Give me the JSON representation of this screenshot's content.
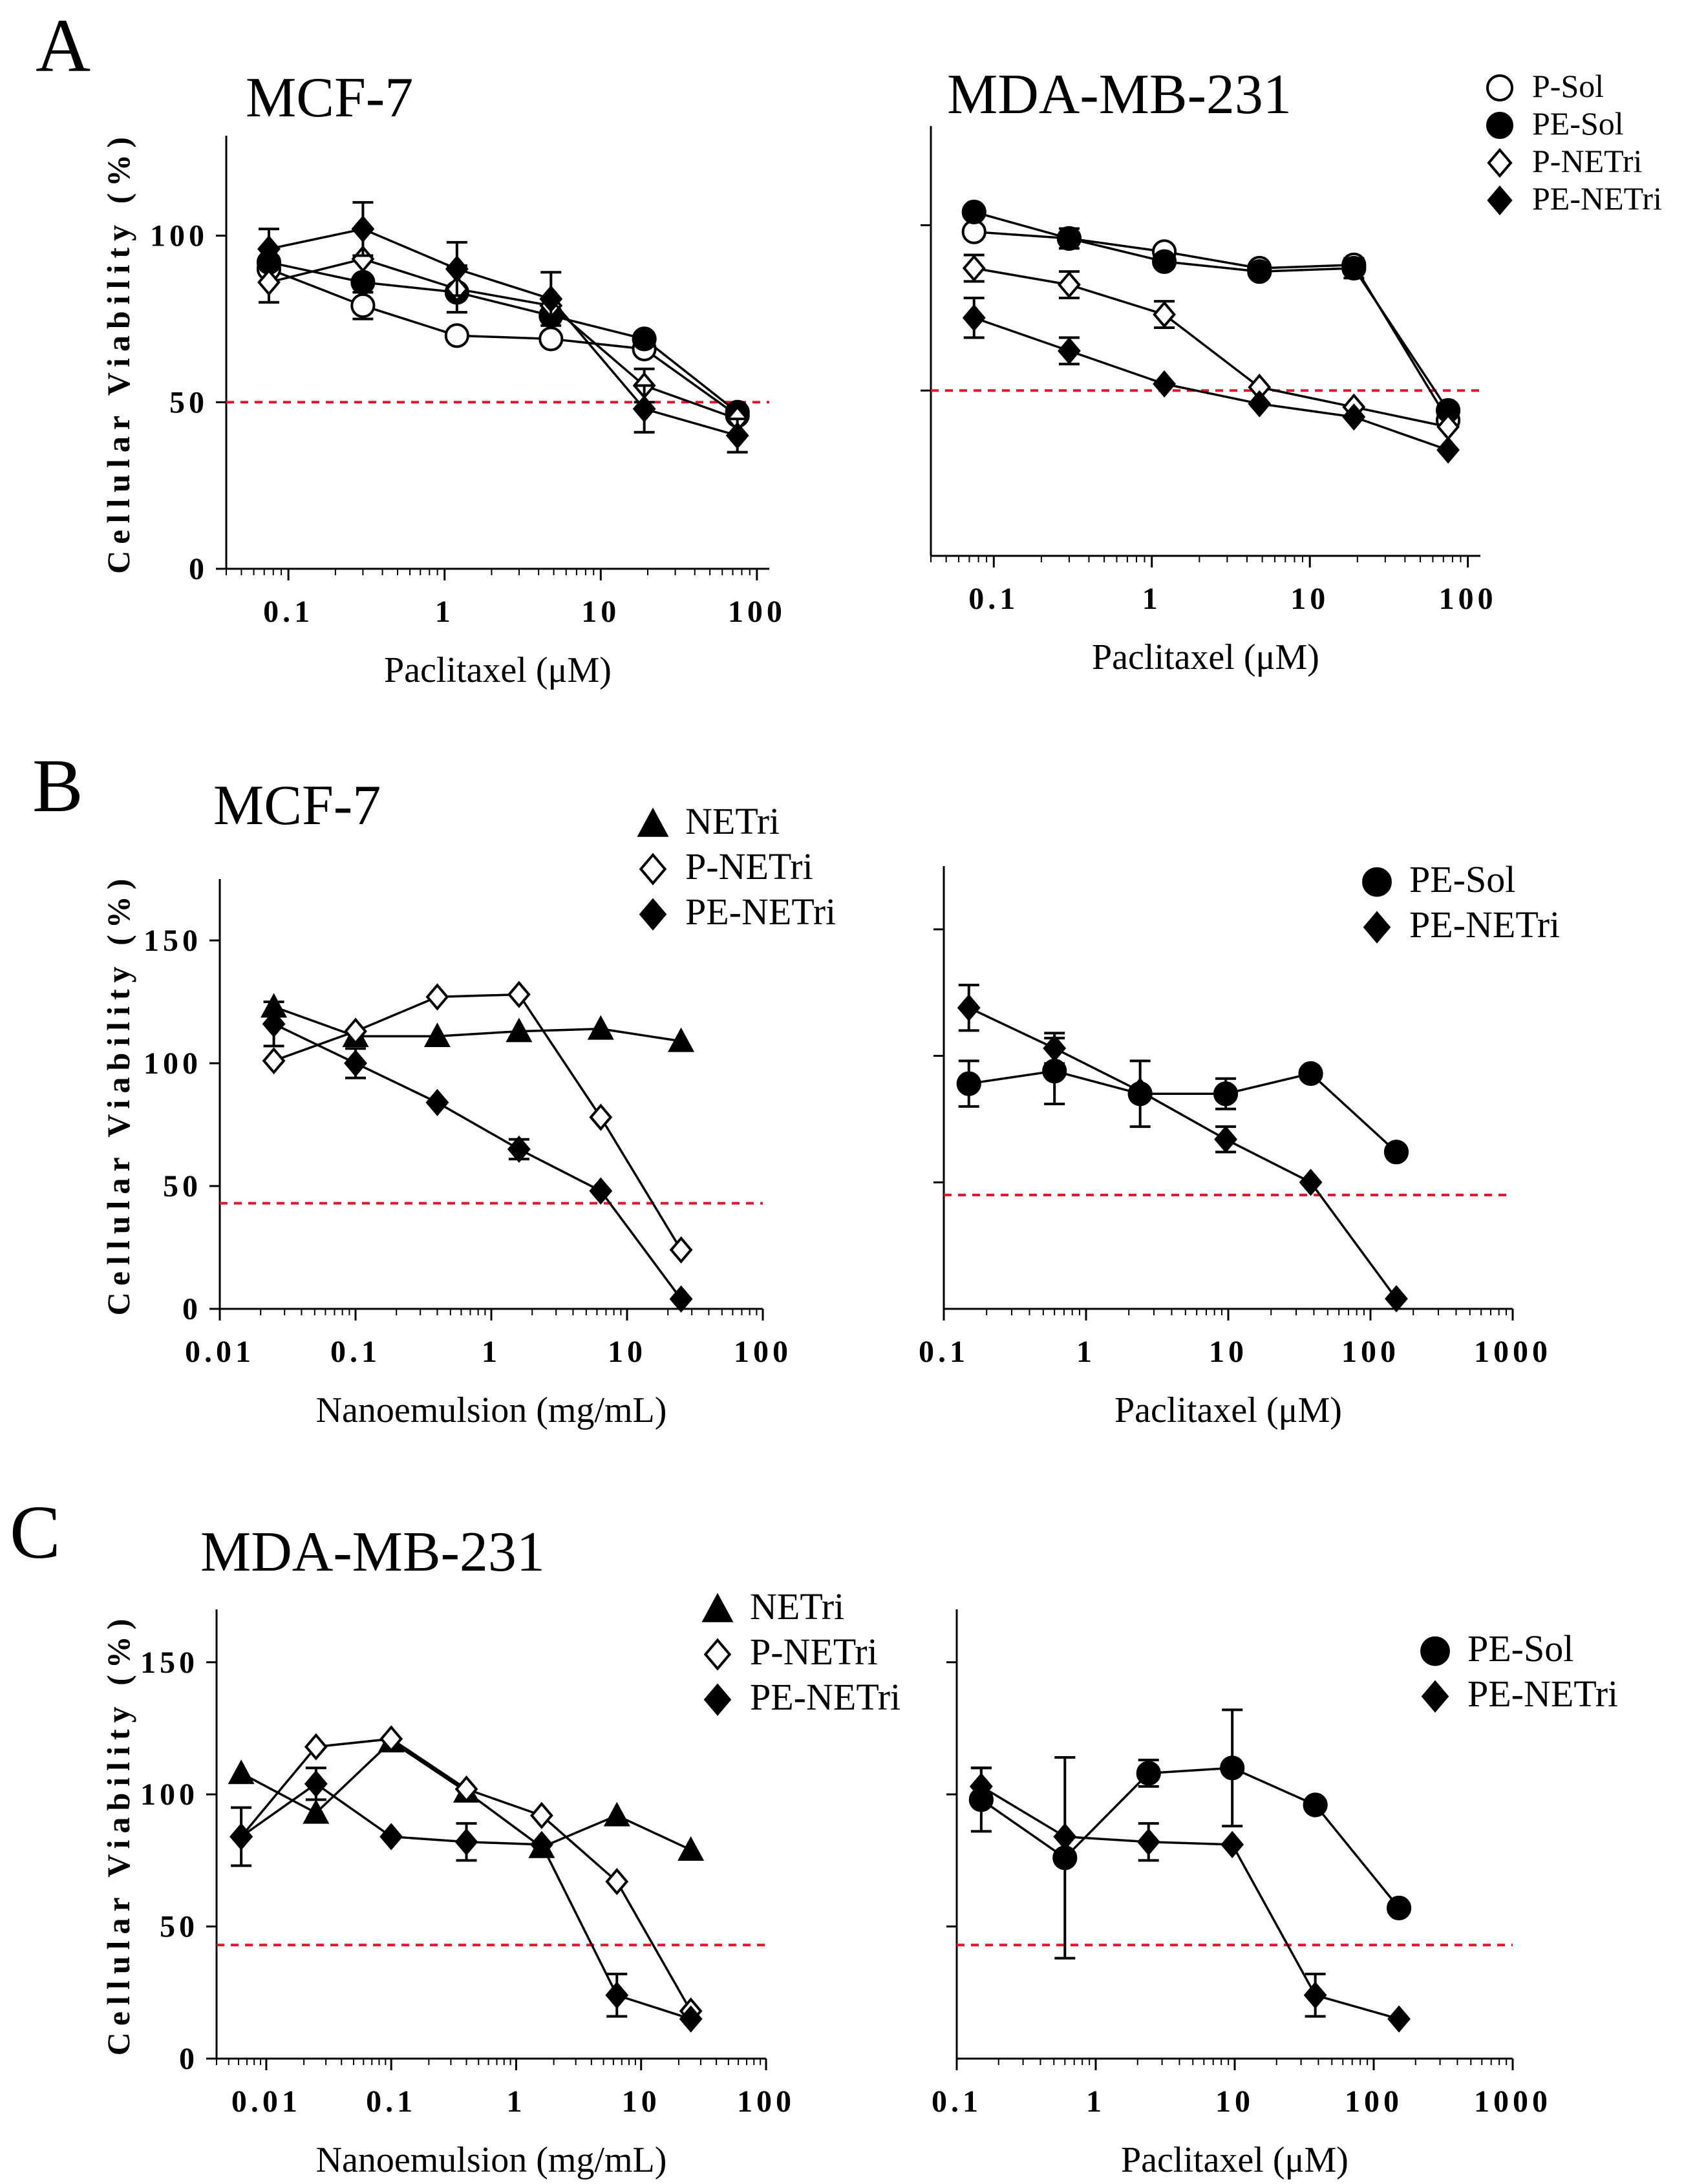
{
  "figure": {
    "colors": {
      "ink": "#000000",
      "threshold": "#e8102a",
      "background": "#ffffff"
    },
    "panels": [
      {
        "letter": "A",
        "title": "MCF-7"
      },
      {
        "letter": "B",
        "title": "MCF-7"
      },
      {
        "letter": "C",
        "title": "MDA-MB-231"
      }
    ],
    "ylabel": "Cellular Viability (%)"
  },
  "chart_data": [
    {
      "id": "A1",
      "type": "line",
      "title": "MCF-7",
      "xlabel": "Paclitaxel (μM)",
      "ylabel": "Cellular Viability (%)",
      "xscale": "log",
      "xlim": [
        0.04,
        120
      ],
      "ylim": [
        0,
        130
      ],
      "xticks": [
        0.1,
        1,
        10,
        100
      ],
      "xtick_labels": [
        "0.1",
        "1",
        "10",
        "100"
      ],
      "yticks": [
        0,
        50,
        100
      ],
      "ytick_labels": [
        "0",
        "50",
        "100"
      ],
      "threshold": 50,
      "legend": "none",
      "series": [
        {
          "name": "P-Sol",
          "marker": "circle-open",
          "x": [
            0.075,
            0.3,
            1.2,
            4.8,
            19,
            75
          ],
          "y": [
            90,
            79,
            70,
            69,
            66,
            46
          ],
          "err": [
            0,
            4,
            0,
            0,
            0,
            0
          ]
        },
        {
          "name": "PE-Sol",
          "marker": "circle-filled",
          "x": [
            0.075,
            0.3,
            1.2,
            4.8,
            19,
            75
          ],
          "y": [
            92,
            86,
            83,
            76,
            69,
            47
          ],
          "err": [
            0,
            0,
            0,
            0,
            0,
            0
          ]
        },
        {
          "name": "P-NETri",
          "marker": "diamond-open",
          "x": [
            0.075,
            0.3,
            1.2,
            4.8,
            19,
            75
          ],
          "y": [
            86,
            93,
            84,
            79,
            55,
            45
          ],
          "err": [
            6,
            0,
            7,
            0,
            5,
            0
          ]
        },
        {
          "name": "PE-NETri",
          "marker": "diamond-filled",
          "x": [
            0.075,
            0.3,
            1.2,
            4.8,
            19,
            75
          ],
          "y": [
            96,
            102,
            90,
            81,
            48,
            40
          ],
          "err": [
            6,
            8,
            8,
            8,
            7,
            5
          ]
        }
      ]
    },
    {
      "id": "A2",
      "type": "line",
      "title": "MDA-MB-231",
      "xlabel": "Paclitaxel (μM)",
      "ylabel": "",
      "xscale": "log",
      "xlim": [
        0.04,
        120
      ],
      "ylim": [
        0,
        130
      ],
      "xticks": [
        0.1,
        1,
        10,
        100
      ],
      "xtick_labels": [
        "0.1",
        "1",
        "10",
        "100"
      ],
      "yticks": [
        50,
        100
      ],
      "ytick_labels": [],
      "threshold": 50,
      "legend": "top-right",
      "series": [
        {
          "name": "P-Sol",
          "marker": "circle-open",
          "x": [
            0.075,
            0.3,
            1.2,
            4.8,
            19,
            75
          ],
          "y": [
            98,
            96,
            92,
            87,
            88,
            41
          ],
          "err": [
            0,
            0,
            0,
            0,
            0,
            0
          ]
        },
        {
          "name": "PE-Sol",
          "marker": "circle-filled",
          "x": [
            0.075,
            0.3,
            1.2,
            4.8,
            19,
            75
          ],
          "y": [
            104,
            96,
            89,
            86,
            87,
            44
          ],
          "err": [
            0,
            3,
            0,
            0,
            3,
            0
          ]
        },
        {
          "name": "P-NETri",
          "marker": "diamond-open",
          "x": [
            0.075,
            0.3,
            1.2,
            4.8,
            19,
            75
          ],
          "y": [
            87,
            82,
            73,
            51,
            45,
            39
          ],
          "err": [
            4,
            4,
            4,
            0,
            0,
            0
          ]
        },
        {
          "name": "PE-NETri",
          "marker": "diamond-filled",
          "x": [
            0.075,
            0.3,
            1.2,
            4.8,
            19,
            75
          ],
          "y": [
            72,
            62,
            52,
            46,
            42,
            32
          ],
          "err": [
            6,
            4,
            0,
            0,
            0,
            0
          ]
        }
      ]
    },
    {
      "id": "B1",
      "type": "line",
      "title": "MCF-7",
      "xlabel": "Nanoemulsion (mg/mL)",
      "ylabel": "Cellular Viability (%)",
      "xscale": "log",
      "xlim": [
        0.01,
        100
      ],
      "ylim": [
        0,
        175
      ],
      "xticks": [
        0.01,
        0.1,
        1,
        10,
        100
      ],
      "xtick_labels": [
        "0.01",
        "0.1",
        "1",
        "10",
        "100"
      ],
      "yticks": [
        0,
        50,
        100,
        150
      ],
      "ytick_labels": [
        "0",
        "50",
        "100",
        "150"
      ],
      "threshold": 43,
      "legend": "top-right",
      "series": [
        {
          "name": "NETri",
          "marker": "triangle-filled",
          "x": [
            0.025,
            0.1,
            0.4,
            1.6,
            6.4,
            25
          ],
          "y": [
            123,
            111,
            111,
            113,
            114,
            109
          ],
          "err": [
            0,
            0,
            0,
            0,
            0,
            0
          ]
        },
        {
          "name": "P-NETri",
          "marker": "diamond-open",
          "x": [
            0.025,
            0.1,
            0.4,
            1.6,
            6.4,
            25
          ],
          "y": [
            101,
            113,
            127,
            128,
            78,
            24
          ],
          "err": [
            0,
            0,
            0,
            0,
            0,
            0
          ]
        },
        {
          "name": "PE-NETri",
          "marker": "diamond-filled",
          "x": [
            0.025,
            0.1,
            0.4,
            1.6,
            6.4,
            25
          ],
          "y": [
            116,
            100,
            84,
            65,
            48,
            4
          ],
          "err": [
            9,
            6,
            0,
            4,
            0,
            0
          ]
        }
      ]
    },
    {
      "id": "B2",
      "type": "line",
      "title": "",
      "xlabel": "Paclitaxel (μM)",
      "ylabel": "",
      "xscale": "log",
      "xlim": [
        0.1,
        1000
      ],
      "ylim": [
        0,
        175
      ],
      "xticks": [
        0.1,
        1,
        10,
        100,
        1000
      ],
      "xtick_labels": [
        "0.1",
        "1",
        "10",
        "100",
        "1000"
      ],
      "yticks": [
        50,
        100,
        150
      ],
      "ytick_labels": [],
      "threshold": 45,
      "legend": "top-right",
      "series": [
        {
          "name": "PE-Sol",
          "marker": "circle-filled",
          "x": [
            0.15,
            0.6,
            2.4,
            9.6,
            38,
            152
          ],
          "y": [
            89,
            94,
            85,
            85,
            93,
            62
          ],
          "err": [
            9,
            13,
            13,
            6,
            0,
            0
          ]
        },
        {
          "name": "PE-NETri",
          "marker": "diamond-filled",
          "x": [
            0.15,
            0.6,
            2.4,
            9.6,
            38,
            152
          ],
          "y": [
            119,
            103,
            86,
            67,
            50,
            4
          ],
          "err": [
            9,
            6,
            0,
            5,
            0,
            0
          ]
        }
      ]
    },
    {
      "id": "C1",
      "type": "line",
      "title": "MDA-MB-231",
      "xlabel": "Nanoemulsion (mg/mL)",
      "ylabel": "Cellular Viability (%)",
      "xscale": "log",
      "xlim": [
        0.004,
        100
      ],
      "ylim": [
        0,
        170
      ],
      "xticks": [
        0.01,
        0.1,
        1,
        10,
        100
      ],
      "xtick_labels": [
        "0.01",
        "0.1",
        "1",
        "10",
        "100"
      ],
      "yticks": [
        0,
        50,
        100,
        150
      ],
      "ytick_labels": [
        "0",
        "50",
        "100",
        "150"
      ],
      "threshold": 43,
      "legend": "top-right",
      "series": [
        {
          "name": "NETri",
          "marker": "triangle-filled",
          "x": [
            0.0063,
            0.025,
            0.1,
            0.4,
            1.6,
            6.4,
            25
          ],
          "y": [
            108,
            93,
            120,
            101,
            80,
            92,
            79
          ],
          "err": [
            0,
            0,
            0,
            0,
            0,
            0,
            0
          ]
        },
        {
          "name": "P-NETri",
          "marker": "diamond-open",
          "x": [
            0.0063,
            0.025,
            0.1,
            0.4,
            1.6,
            6.4,
            25
          ],
          "y": [
            84,
            118,
            121,
            102,
            92,
            67,
            18
          ],
          "err": [
            0,
            0,
            0,
            0,
            0,
            0,
            0
          ]
        },
        {
          "name": "PE-NETri",
          "marker": "diamond-filled",
          "x": [
            0.0063,
            0.025,
            0.1,
            0.4,
            1.6,
            6.4,
            25
          ],
          "y": [
            84,
            104,
            84,
            82,
            81,
            24,
            15
          ],
          "err": [
            11,
            6,
            0,
            7,
            0,
            8,
            0
          ]
        }
      ]
    },
    {
      "id": "C2",
      "type": "line",
      "title": "",
      "xlabel": "Paclitaxel (μM)",
      "ylabel": "",
      "xscale": "log",
      "xlim": [
        0.1,
        1000
      ],
      "ylim": [
        0,
        170
      ],
      "xticks": [
        0.1,
        1,
        10,
        100,
        1000
      ],
      "xtick_labels": [
        "0.1",
        "1",
        "10",
        "100",
        "1000"
      ],
      "yticks": [
        50,
        100,
        150
      ],
      "ytick_labels": [],
      "threshold": 43,
      "legend": "top-right",
      "series": [
        {
          "name": "PE-Sol",
          "marker": "circle-filled",
          "x": [
            0.15,
            0.6,
            2.4,
            9.6,
            38,
            152
          ],
          "y": [
            98,
            76,
            108,
            110,
            96,
            57
          ],
          "err": [
            12,
            38,
            5,
            22,
            0,
            0
          ]
        },
        {
          "name": "PE-NETri",
          "marker": "diamond-filled",
          "x": [
            0.15,
            0.6,
            2.4,
            9.6,
            38,
            152
          ],
          "y": [
            103,
            84,
            82,
            81,
            24,
            15
          ],
          "err": [
            7,
            0,
            7,
            0,
            8,
            0
          ]
        }
      ]
    }
  ]
}
